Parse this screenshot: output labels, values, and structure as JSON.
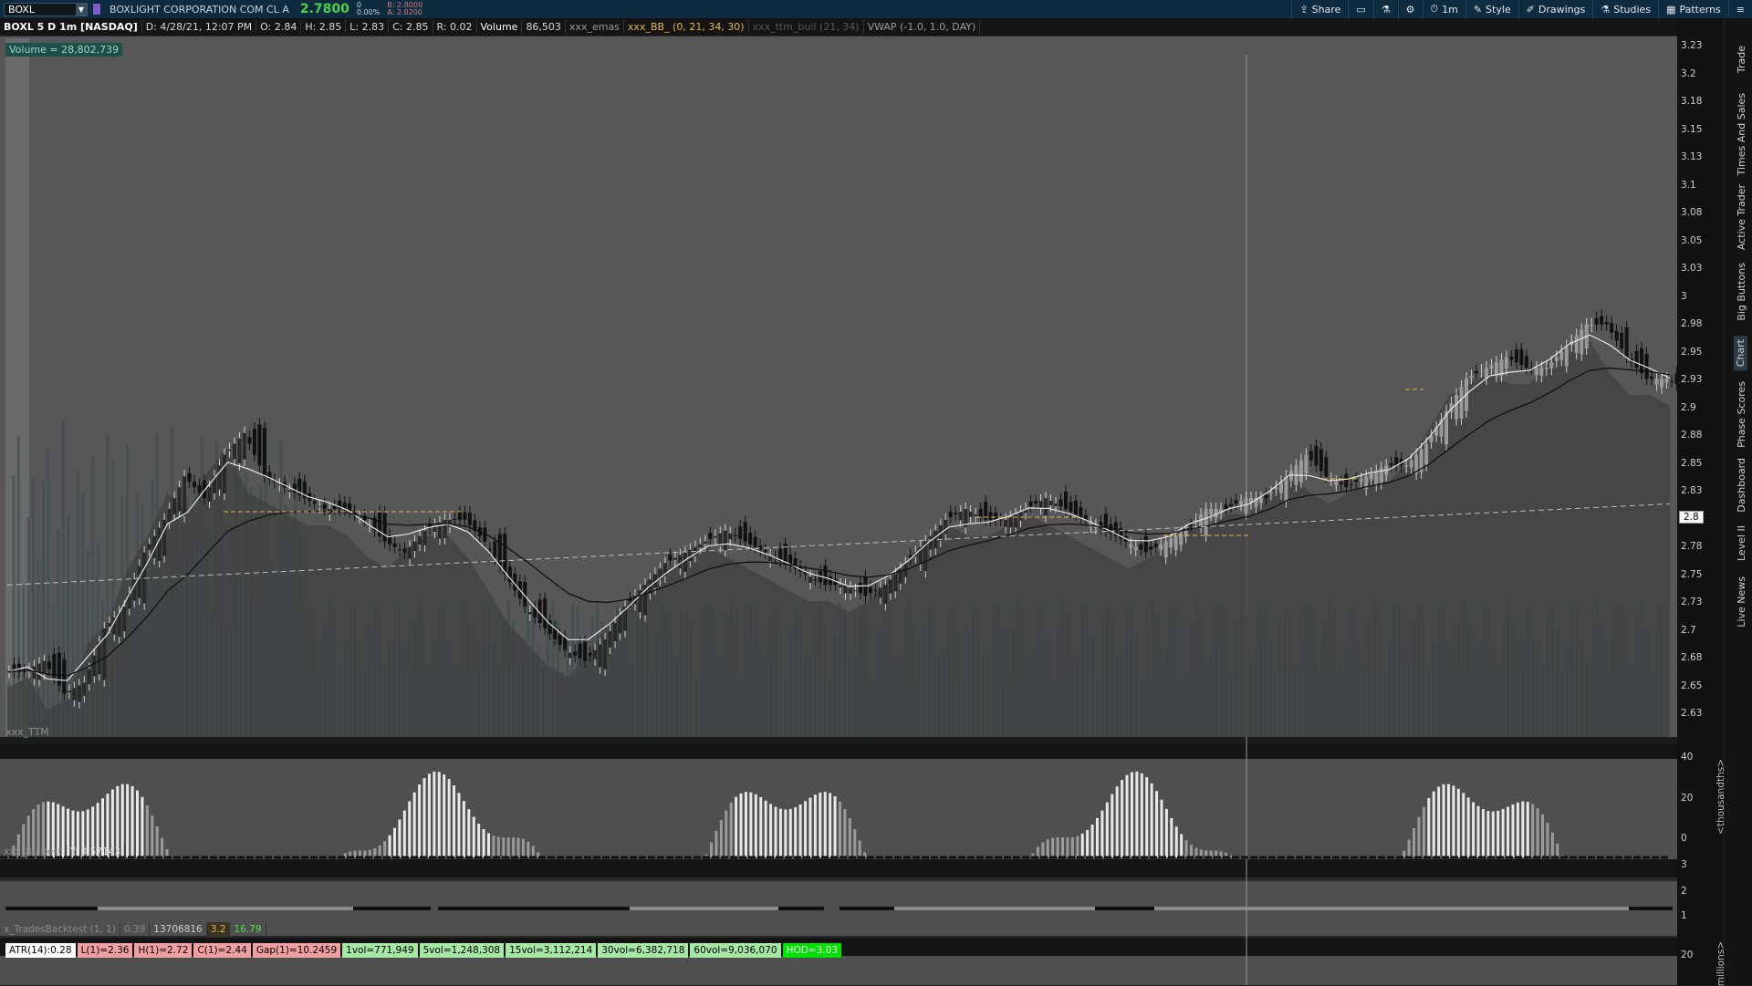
{
  "toolbar": {
    "symbol": "BOXL",
    "company": "BOXLIGHT CORPORATION COM CL A",
    "last": "2.7800",
    "change": "0",
    "change_pct": "0.00%",
    "bid": "B: 2.8000",
    "ask": "A: 2.8200",
    "tools": [
      {
        "label": "Share",
        "icon": "share-icon"
      },
      {
        "label": "",
        "icon": "window-icon"
      },
      {
        "label": "",
        "icon": "flask-icon"
      },
      {
        "label": "",
        "icon": "gear-icon"
      },
      {
        "label": "1m",
        "icon": "timeframe-icon"
      },
      {
        "label": "Style",
        "icon": "style-icon"
      },
      {
        "label": "Drawings",
        "icon": "drawings-icon"
      },
      {
        "label": "Studies",
        "icon": "studies-icon"
      },
      {
        "label": "Patterns",
        "icon": "patterns-icon"
      },
      {
        "label": "",
        "icon": "menu-icon"
      }
    ]
  },
  "infobar": {
    "title": "BOXL 5 D 1m [NASDAQ]",
    "date": "D: 4/28/21, 12:07 PM",
    "open": "O: 2.84",
    "high": "H: 2.85",
    "low": "L: 2.83",
    "close": "C: 2.85",
    "range": "R: 0.02",
    "volume_label": "Volume",
    "volume_value": "86,503",
    "emas": "xxx_emas",
    "bb": "xxx_BB_ (0, 21, 34, 30)",
    "ttm_hidden": "xxx_ttm_bull (21, 34)",
    "vwap": "VWAP (-1.0, 1.0, DAY)"
  },
  "volume_badge": "Volume = 28,802,739",
  "price_axis": {
    "ticks": [
      "3.23",
      "3.2",
      "3.18",
      "3.15",
      "3.13",
      "3.1",
      "3.08",
      "3.05",
      "3.03",
      "3",
      "2.98",
      "2.95",
      "2.93",
      "2.9",
      "2.88",
      "2.85",
      "2.83",
      "2.8",
      "2.78",
      "2.75",
      "2.73",
      "2.7",
      "2.68",
      "2.65",
      "2.63"
    ],
    "current": "2.8"
  },
  "sidebar_tabs": [
    "Trade",
    "Times And Sales",
    "Active Trader",
    "Big Buttons",
    "Chart",
    "Phase Scores",
    "Dashboard",
    "Level II",
    "Live News"
  ],
  "ttm_panel": {
    "title": "xxx_TTM",
    "ticks": [
      "40",
      "20",
      "0"
    ],
    "unit_label": "<thousandths>"
  },
  "bulltest_panel": {
    "title": "xxx_Bulltest",
    "y": "Y: 3.57143",
    "ticks": [
      "3",
      "2",
      "1"
    ]
  },
  "backtest_panel": {
    "title": "x_TradesBacktest (1, 1)",
    "v1": "0.39",
    "v2": "13706816",
    "v3": "3.2",
    "v4": "16.79",
    "tick": "20",
    "unit_label": "millions>"
  },
  "stats": [
    {
      "label": "ATR(14):0.28",
      "style": "white"
    },
    {
      "label": "L(1)=2.36",
      "style": "red"
    },
    {
      "label": "H(1)=2.72",
      "style": "red"
    },
    {
      "label": "C(1)=2.44",
      "style": "red"
    },
    {
      "label": "Gap(1)=10.2459",
      "style": "red"
    },
    {
      "label": "1vol=771,949",
      "style": "green"
    },
    {
      "label": "5vol=1,248,308",
      "style": "green"
    },
    {
      "label": "15vol=3,112,214",
      "style": "green"
    },
    {
      "label": "30vol=6,382,718",
      "style": "green"
    },
    {
      "label": "60vol=9,036,070",
      "style": "green"
    },
    {
      "label": "HOD=3.03",
      "style": "brightgreen"
    }
  ],
  "chart_data": {
    "type": "candlestick",
    "y_range": [
      2.625,
      3.24
    ],
    "series_close": [
      2.68,
      2.69,
      2.66,
      2.67,
      2.72,
      2.74,
      2.79,
      2.82,
      2.86,
      2.84,
      2.88,
      2.9,
      2.86,
      2.85,
      2.84,
      2.83,
      2.83,
      2.82,
      2.8,
      2.79,
      2.81,
      2.82,
      2.82,
      2.8,
      2.77,
      2.74,
      2.72,
      2.7,
      2.69,
      2.71,
      2.74,
      2.76,
      2.78,
      2.79,
      2.8,
      2.81,
      2.8,
      2.79,
      2.78,
      2.77,
      2.76,
      2.76,
      2.75,
      2.76,
      2.78,
      2.8,
      2.82,
      2.83,
      2.82,
      2.82,
      2.83,
      2.84,
      2.83,
      2.82,
      2.81,
      2.8,
      2.79,
      2.8,
      2.81,
      2.83,
      2.83,
      2.84,
      2.84,
      2.86,
      2.88,
      2.86,
      2.85,
      2.86,
      2.87,
      2.87,
      2.89,
      2.92,
      2.95,
      2.96,
      2.97,
      2.96,
      2.96,
      2.98,
      3.0,
      3.0,
      2.97,
      2.95,
      2.95,
      2.94
    ]
  }
}
